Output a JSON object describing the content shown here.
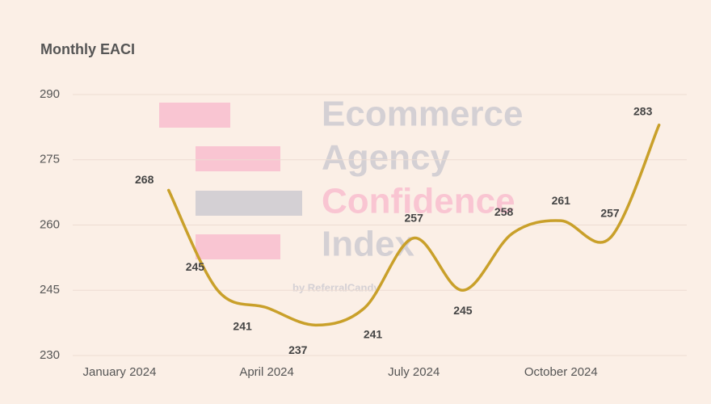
{
  "chart_data": {
    "type": "line",
    "title": "Monthly EACI",
    "categories": [
      "January 2024",
      null,
      null,
      "April 2024",
      null,
      null,
      "July 2024",
      null,
      null,
      "October 2024",
      null,
      null
    ],
    "series": [
      {
        "name": "EACI",
        "color": "#c9a02a",
        "values": [
          null,
          268,
          245,
          241,
          237,
          241,
          257,
          245,
          258,
          261,
          257,
          283
        ]
      }
    ],
    "ylim": [
      230,
      290
    ],
    "yticks": [
      230,
      245,
      260,
      275,
      290
    ],
    "grid": true
  },
  "watermark": {
    "lines": [
      "Ecommerce",
      "Agency",
      "Confidence",
      "Index"
    ],
    "byline": "by ReferralCandy"
  }
}
